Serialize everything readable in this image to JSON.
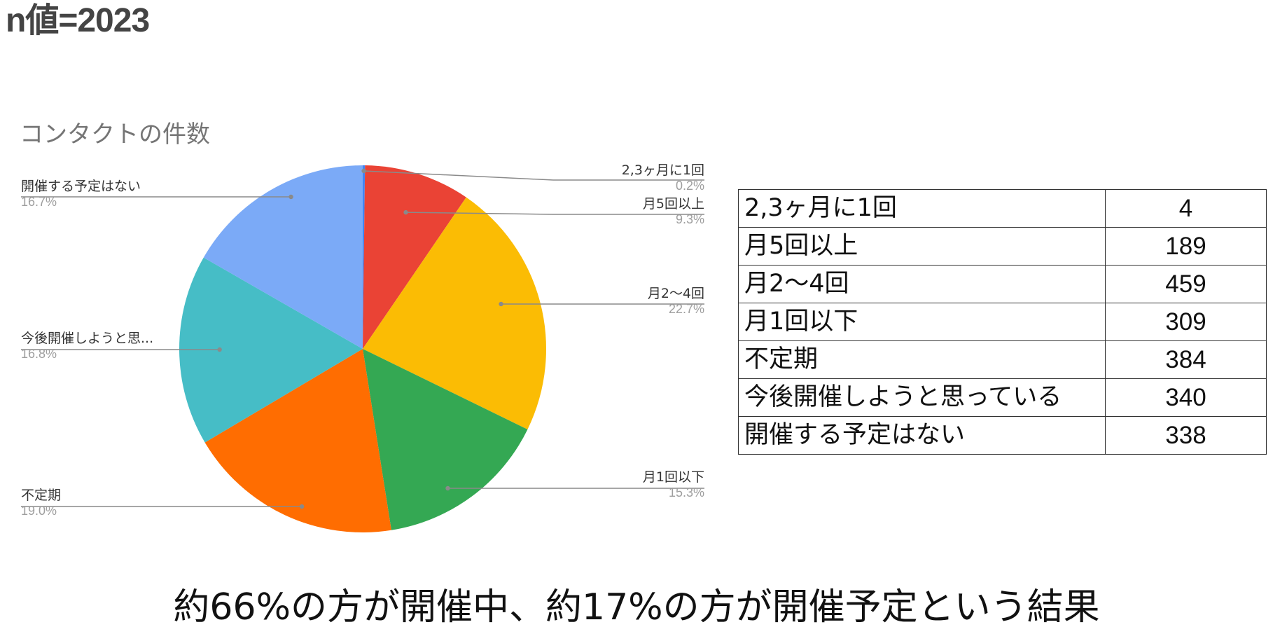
{
  "heading": "n値=2023",
  "conclusion": "約66%の方が開催中、約17%の方が開催予定という結果",
  "table": {
    "rows": [
      {
        "label": "2,3ヶ月に1回",
        "value": "4"
      },
      {
        "label": "月5回以上",
        "value": "189"
      },
      {
        "label": "月2〜4回",
        "value": "459"
      },
      {
        "label": "月1回以下",
        "value": "309"
      },
      {
        "label": "不定期",
        "value": "384"
      },
      {
        "label": "今後開催しようと思っている",
        "value": "340"
      },
      {
        "label": "開催する予定はない",
        "value": "338"
      }
    ]
  },
  "chart_data": {
    "type": "pie",
    "title": "コンタクトの件数",
    "slices": [
      {
        "label": "2,3ヶ月に1回",
        "value": 4,
        "percent_label": "0.2%",
        "color": "#4285f4"
      },
      {
        "label": "月5回以上",
        "value": 189,
        "percent_label": "9.3%",
        "color": "#ea4335"
      },
      {
        "label": "月2〜4回",
        "value": 459,
        "percent_label": "22.7%",
        "color": "#fbbc04"
      },
      {
        "label": "月1回以下",
        "value": 309,
        "percent_label": "15.3%",
        "color": "#34a853"
      },
      {
        "label": "不定期",
        "value": 384,
        "percent_label": "19.0%",
        "color": "#ff6d01"
      },
      {
        "label": "今後開催しようと思...",
        "value": 340,
        "percent_label": "16.8%",
        "color": "#46bdc6"
      },
      {
        "label": "開催する予定はない",
        "value": 338,
        "percent_label": "16.7%",
        "color": "#7baaf7"
      }
    ],
    "start_angle": "12 o'clock",
    "direction": "clockwise",
    "legend": "none"
  }
}
